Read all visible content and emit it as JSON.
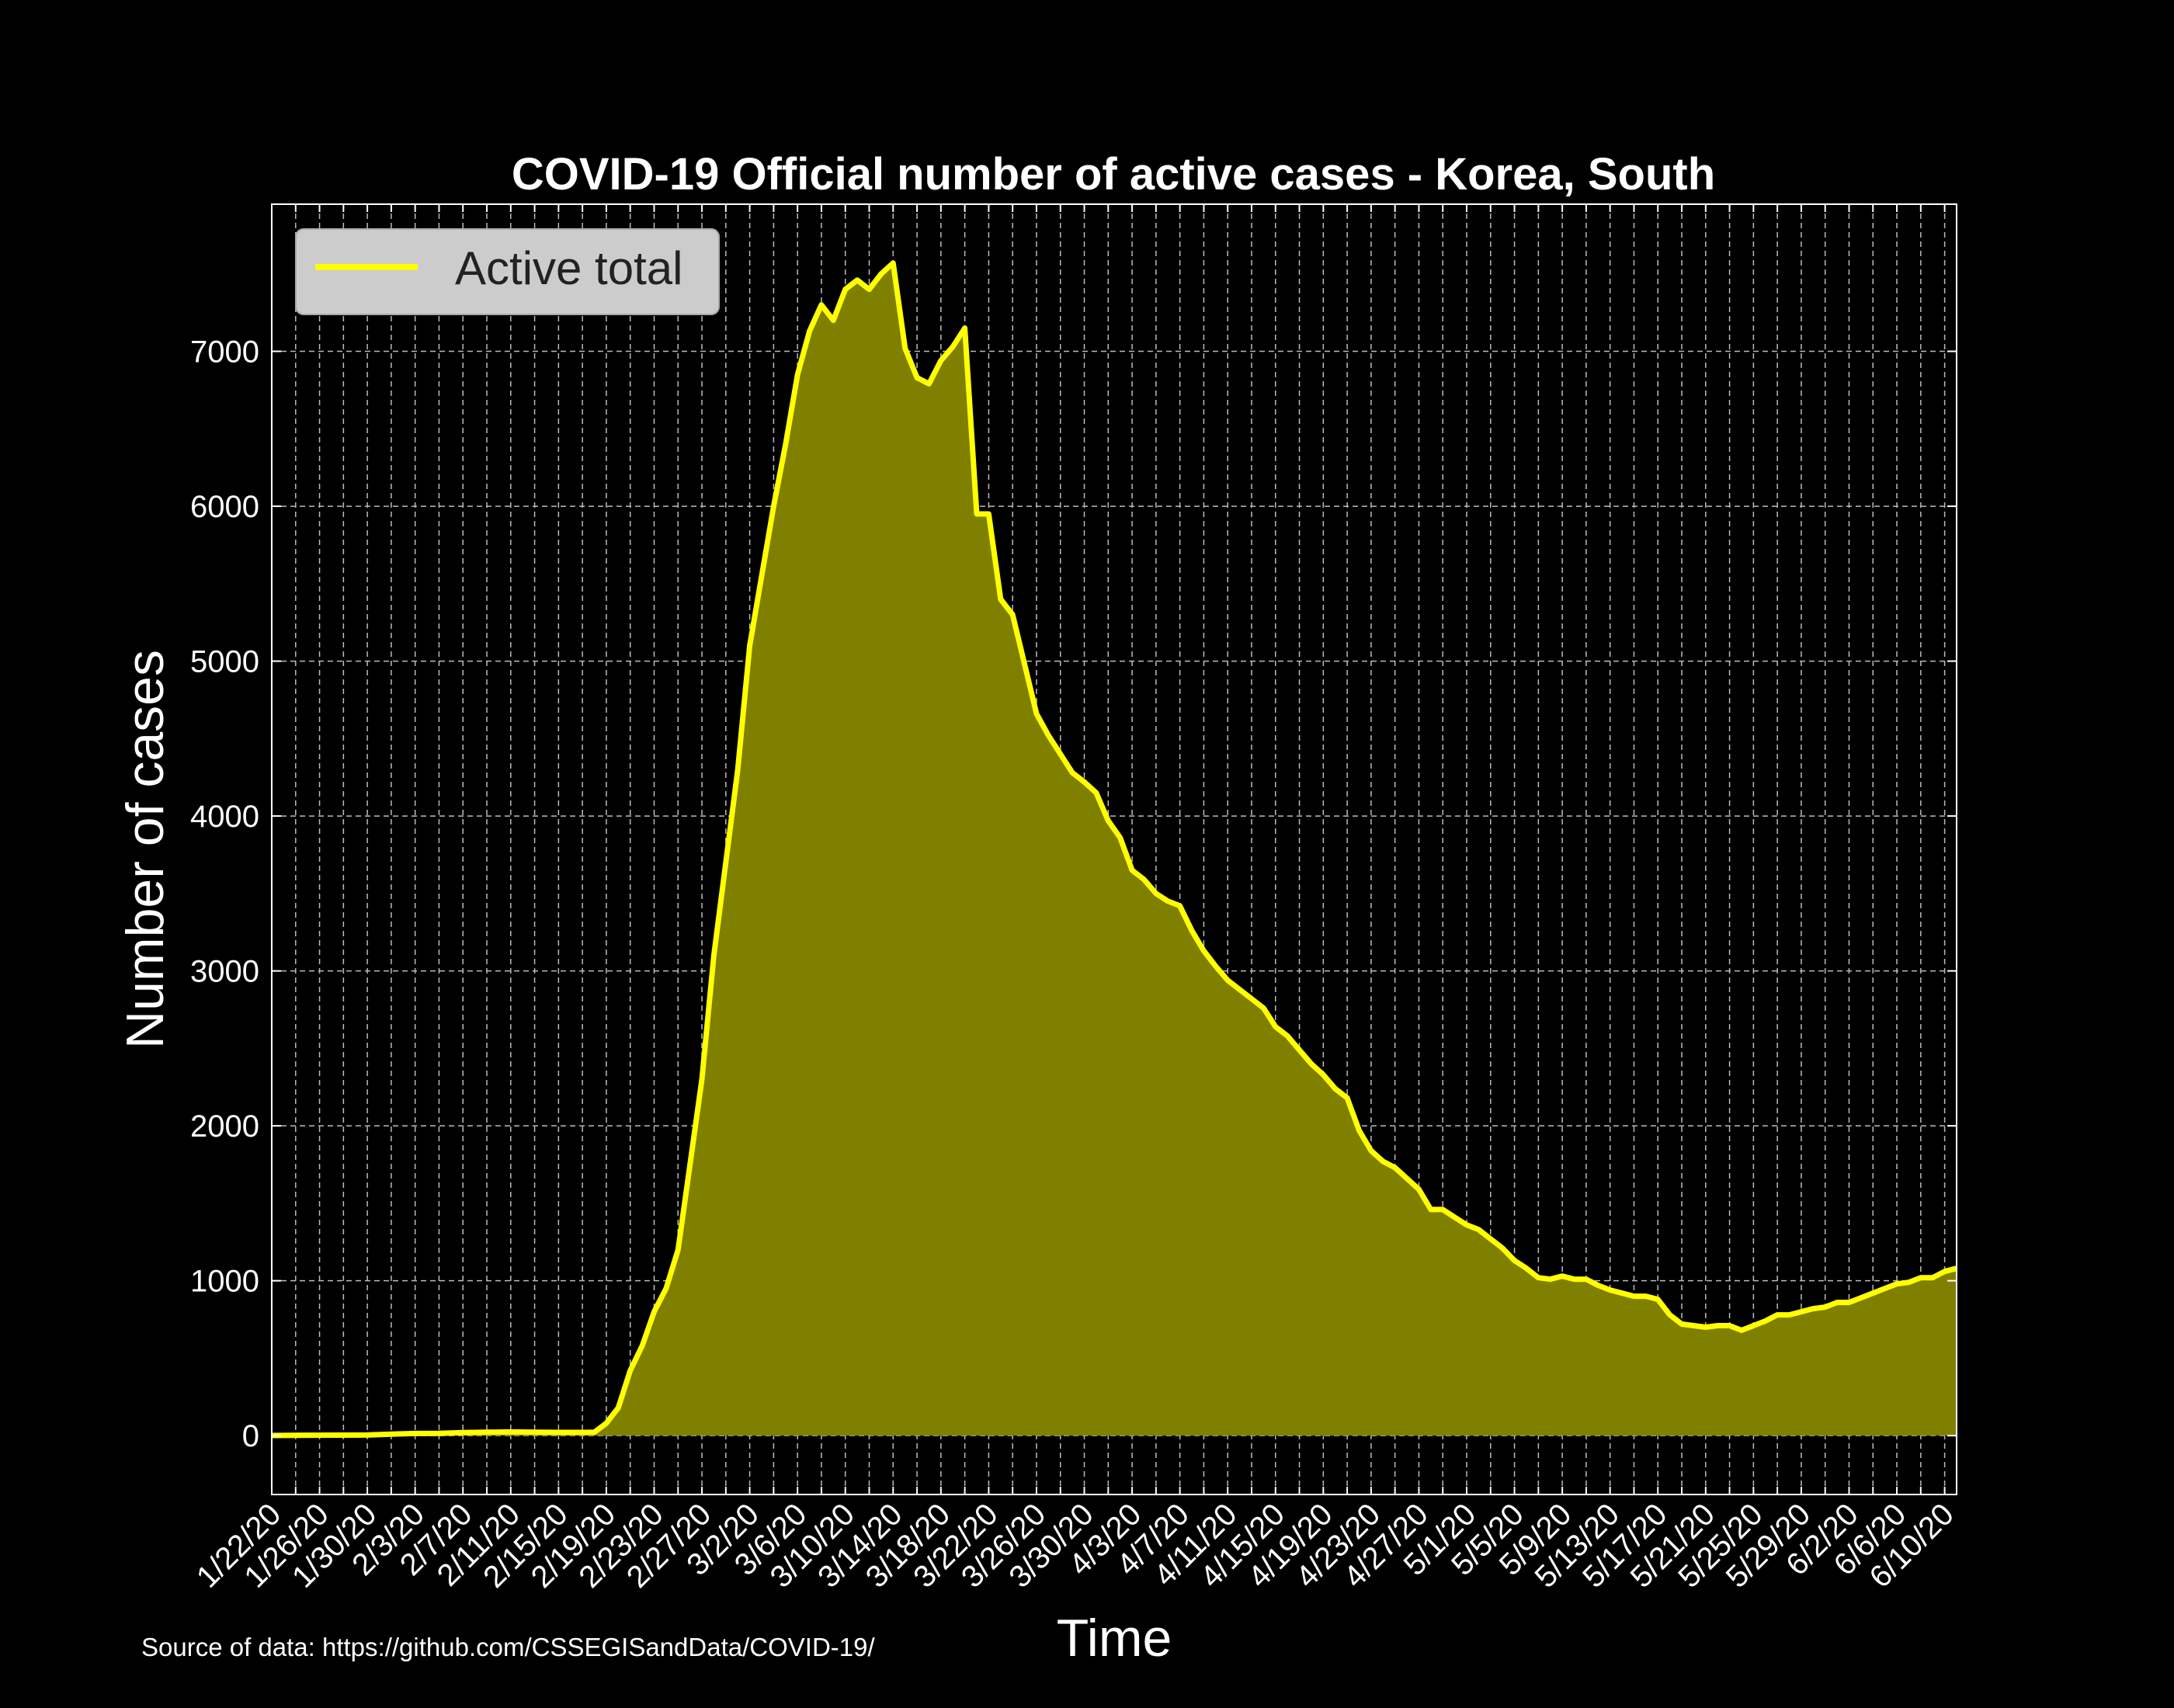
{
  "chart_data": {
    "type": "area",
    "title": "COVID-19 Official number of active cases - Korea, South",
    "xlabel": "Time",
    "ylabel": "Number of cases",
    "source": "Source of data: https://github.com/CSSEGISandData/COVID-19/",
    "ylim": [
      -380,
      7950
    ],
    "yticks": [
      0,
      1000,
      2000,
      3000,
      4000,
      5000,
      6000,
      7000
    ],
    "x_start": "1/22/20",
    "x_end": "6/11/20",
    "x_tick_labels": [
      "1/22/20",
      "1/26/20",
      "1/30/20",
      "2/3/20",
      "2/7/20",
      "2/11/20",
      "2/15/20",
      "2/19/20",
      "2/23/20",
      "2/27/20",
      "3/2/20",
      "3/6/20",
      "3/10/20",
      "3/14/20",
      "3/18/20",
      "3/22/20",
      "3/26/20",
      "3/30/20",
      "4/3/20",
      "4/7/20",
      "4/11/20",
      "4/15/20",
      "4/19/20",
      "4/23/20",
      "4/27/20",
      "5/1/20",
      "5/5/20",
      "5/9/20",
      "5/13/20",
      "5/17/20",
      "5/21/20",
      "5/25/20",
      "5/29/20",
      "6/2/20",
      "6/6/20",
      "6/10/20"
    ],
    "grid": true,
    "legend_position": "top-left",
    "series": [
      {
        "name": "Active total",
        "color": "#ffff00",
        "fill_color": "#808000",
        "points": [
          [
            "1/22/20",
            1
          ],
          [
            "1/26/20",
            3
          ],
          [
            "1/30/20",
            4
          ],
          [
            "2/1/20",
            10
          ],
          [
            "2/3/20",
            14
          ],
          [
            "2/5/20",
            15
          ],
          [
            "2/7/20",
            20
          ],
          [
            "2/9/20",
            22
          ],
          [
            "2/11/20",
            24
          ],
          [
            "2/13/20",
            22
          ],
          [
            "2/15/20",
            21
          ],
          [
            "2/17/20",
            21
          ],
          [
            "2/18/20",
            22
          ],
          [
            "2/19/20",
            80
          ],
          [
            "2/20/20",
            180
          ],
          [
            "2/21/20",
            420
          ],
          [
            "2/22/20",
            580
          ],
          [
            "2/23/20",
            800
          ],
          [
            "2/24/20",
            950
          ],
          [
            "2/25/20",
            1200
          ],
          [
            "2/26/20",
            1750
          ],
          [
            "2/27/20",
            2300
          ],
          [
            "2/28/20",
            3100
          ],
          [
            "2/29/20",
            3700
          ],
          [
            "3/1/20",
            4300
          ],
          [
            "3/2/20",
            5100
          ],
          [
            "3/3/20",
            5550
          ],
          [
            "3/4/20",
            6000
          ],
          [
            "3/5/20",
            6400
          ],
          [
            "3/6/20",
            6850
          ],
          [
            "3/7/20",
            7130
          ],
          [
            "3/8/20",
            7300
          ],
          [
            "3/9/20",
            7200
          ],
          [
            "3/10/20",
            7400
          ],
          [
            "3/11/20",
            7460
          ],
          [
            "3/12/20",
            7400
          ],
          [
            "3/13/20",
            7500
          ],
          [
            "3/14/20",
            7570
          ],
          [
            "3/15/20",
            7020
          ],
          [
            "3/16/20",
            6830
          ],
          [
            "3/17/20",
            6790
          ],
          [
            "3/18/20",
            6940
          ],
          [
            "3/19/20",
            7030
          ],
          [
            "3/20/20",
            7150
          ],
          [
            "3/21/20",
            5950
          ],
          [
            "3/22/20",
            5950
          ],
          [
            "3/23/20",
            5400
          ],
          [
            "3/24/20",
            5300
          ],
          [
            "3/25/20",
            4980
          ],
          [
            "3/26/20",
            4660
          ],
          [
            "3/27/20",
            4520
          ],
          [
            "3/28/20",
            4400
          ],
          [
            "3/29/20",
            4280
          ],
          [
            "3/30/20",
            4220
          ],
          [
            "3/31/20",
            4150
          ],
          [
            "4/1/20",
            3970
          ],
          [
            "4/2/20",
            3860
          ],
          [
            "4/3/20",
            3650
          ],
          [
            "4/4/20",
            3590
          ],
          [
            "4/5/20",
            3500
          ],
          [
            "4/6/20",
            3450
          ],
          [
            "4/7/20",
            3420
          ],
          [
            "4/8/20",
            3260
          ],
          [
            "4/9/20",
            3130
          ],
          [
            "4/10/20",
            3030
          ],
          [
            "4/11/20",
            2940
          ],
          [
            "4/12/20",
            2880
          ],
          [
            "4/13/20",
            2820
          ],
          [
            "4/14/20",
            2760
          ],
          [
            "4/15/20",
            2640
          ],
          [
            "4/16/20",
            2580
          ],
          [
            "4/17/20",
            2490
          ],
          [
            "4/18/20",
            2400
          ],
          [
            "4/19/20",
            2330
          ],
          [
            "4/20/20",
            2240
          ],
          [
            "4/21/20",
            2180
          ],
          [
            "4/22/20",
            1970
          ],
          [
            "4/23/20",
            1840
          ],
          [
            "4/24/20",
            1770
          ],
          [
            "4/25/20",
            1730
          ],
          [
            "4/26/20",
            1660
          ],
          [
            "4/27/20",
            1590
          ],
          [
            "4/28/20",
            1460
          ],
          [
            "4/29/20",
            1460
          ],
          [
            "4/30/20",
            1410
          ],
          [
            "5/1/20",
            1360
          ],
          [
            "5/2/20",
            1330
          ],
          [
            "5/3/20",
            1270
          ],
          [
            "5/4/20",
            1210
          ],
          [
            "5/5/20",
            1130
          ],
          [
            "5/6/20",
            1080
          ],
          [
            "5/7/20",
            1020
          ],
          [
            "5/8/20",
            1010
          ],
          [
            "5/9/20",
            1030
          ],
          [
            "5/10/20",
            1010
          ],
          [
            "5/11/20",
            1010
          ],
          [
            "5/12/20",
            970
          ],
          [
            "5/13/20",
            940
          ],
          [
            "5/14/20",
            920
          ],
          [
            "5/15/20",
            900
          ],
          [
            "5/16/20",
            900
          ],
          [
            "5/17/20",
            880
          ],
          [
            "5/18/20",
            780
          ],
          [
            "5/19/20",
            720
          ],
          [
            "5/20/20",
            710
          ],
          [
            "5/21/20",
            700
          ],
          [
            "5/22/20",
            710
          ],
          [
            "5/23/20",
            710
          ],
          [
            "5/24/20",
            680
          ],
          [
            "5/25/20",
            710
          ],
          [
            "5/26/20",
            740
          ],
          [
            "5/27/20",
            780
          ],
          [
            "5/28/20",
            780
          ],
          [
            "5/29/20",
            800
          ],
          [
            "5/30/20",
            820
          ],
          [
            "5/31/20",
            830
          ],
          [
            "6/1/20",
            860
          ],
          [
            "6/2/20",
            860
          ],
          [
            "6/3/20",
            890
          ],
          [
            "6/4/20",
            920
          ],
          [
            "6/5/20",
            950
          ],
          [
            "6/6/20",
            980
          ],
          [
            "6/7/20",
            990
          ],
          [
            "6/8/20",
            1020
          ],
          [
            "6/9/20",
            1020
          ],
          [
            "6/10/20",
            1060
          ],
          [
            "6/11/20",
            1080
          ]
        ]
      }
    ]
  }
}
